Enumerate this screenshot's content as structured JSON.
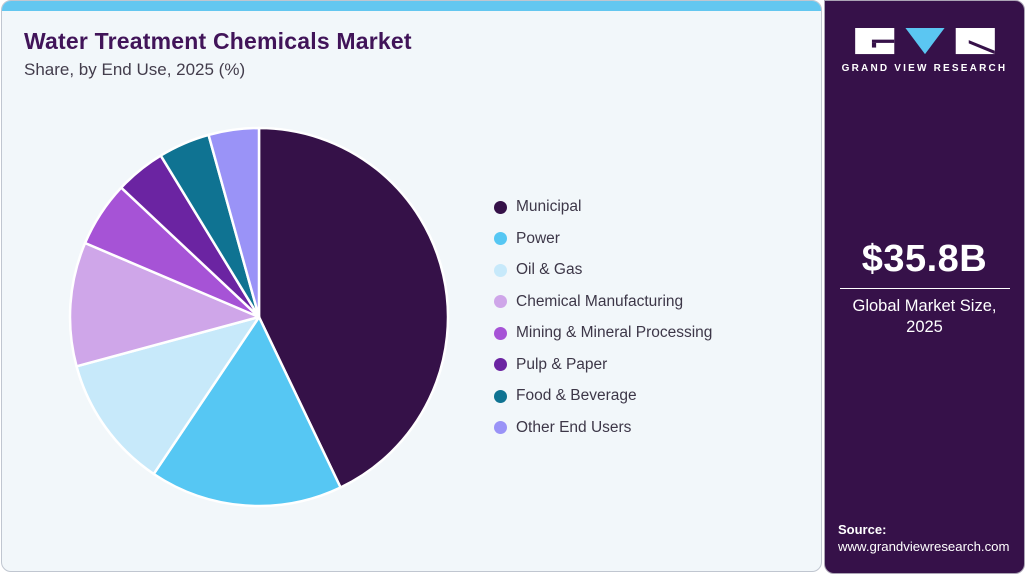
{
  "header": {
    "title": "Water Treatment Chemicals Market",
    "subtitle": "Share, by End Use, 2025 (%)"
  },
  "chart_data": {
    "type": "pie",
    "title": "Water Treatment Chemicals Market Share, by End Use, 2025 (%)",
    "unit": "percent",
    "start_angle_deg": 0,
    "direction": "clockwise",
    "legend_position": "right",
    "slices": [
      {
        "label": "Municipal",
        "value": 42.9,
        "color": "#351148"
      },
      {
        "label": "Power",
        "value": 16.5,
        "color": "#56c7f3"
      },
      {
        "label": "Oil & Gas",
        "value": 11.4,
        "color": "#c7e9fa"
      },
      {
        "label": "Chemical Manufacturing",
        "value": 10.6,
        "color": "#cfa6e9"
      },
      {
        "label": "Mining & Mineral Processing",
        "value": 5.6,
        "color": "#a653d6"
      },
      {
        "label": "Pulp & Paper",
        "value": 4.3,
        "color": "#6b24a2"
      },
      {
        "label": "Food & Beverage",
        "value": 4.4,
        "color": "#0f7392"
      },
      {
        "label": "Other End Users",
        "value": 4.3,
        "color": "#9a93f7"
      }
    ]
  },
  "sidebar": {
    "brand_name": "GRAND VIEW RESEARCH",
    "market_size_value": "$35.8B",
    "market_size_caption": "Global Market Size, 2025",
    "source_label": "Source:",
    "source_url": "www.grandviewresearch.com"
  },
  "colors": {
    "accent_bar": "#63c7f0",
    "card_bg": "#f2f7fa",
    "sidebar_bg": "#361149",
    "title_text": "#411459",
    "legend_text": "#3d3748",
    "logo_triangle": "#5bc6f2",
    "slice_stroke": "#ffffff"
  }
}
